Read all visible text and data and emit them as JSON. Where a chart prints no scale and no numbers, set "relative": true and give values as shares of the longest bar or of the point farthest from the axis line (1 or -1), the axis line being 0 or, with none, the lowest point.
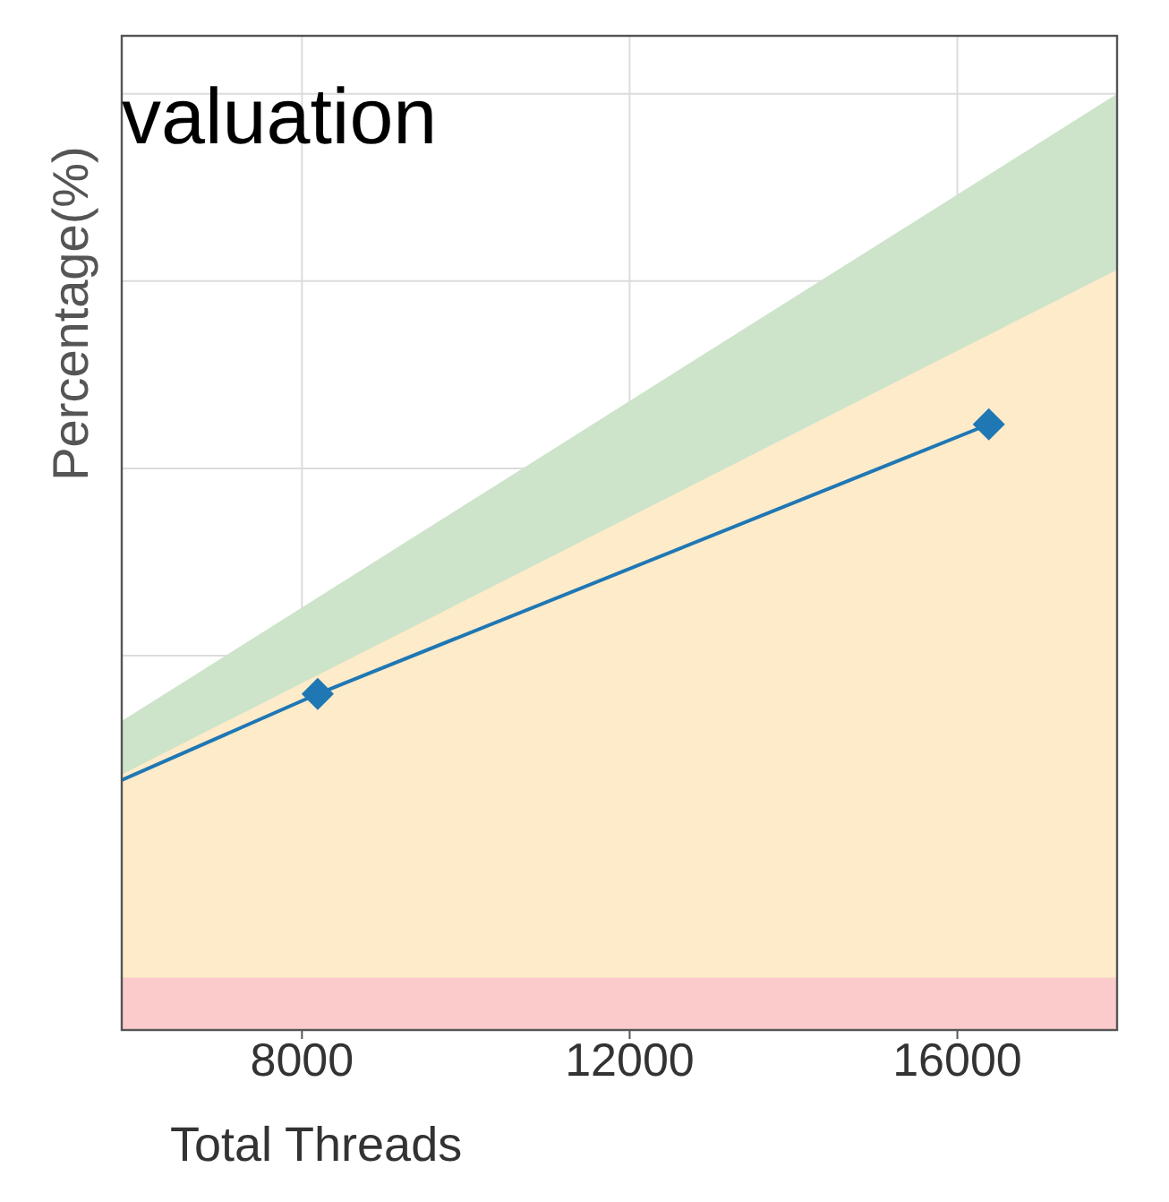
{
  "chart_data": {
    "type": "line",
    "title": "valuation",
    "xlabel": "Total Threads",
    "ylabel": "Percentage(%)",
    "relative": true,
    "xlim": [
      5800,
      17950
    ],
    "xticks": [
      8000,
      12000,
      16000
    ],
    "grid": true,
    "series": [
      {
        "type": "area",
        "color": "#cde4ca",
        "x": [
          5800,
          17950
        ],
        "values": [
          0.33,
          1.0
        ]
      },
      {
        "type": "area",
        "color": "#fdebca",
        "x": [
          5800,
          17950
        ],
        "values": [
          0.273,
          0.812
        ]
      },
      {
        "type": "area",
        "color": "#fbcaca",
        "x": [
          5800,
          17950
        ],
        "values": [
          0.056,
          0.056
        ]
      },
      {
        "color": "#1f77b4",
        "marker": "diamond",
        "x": [
          5800,
          8192,
          16384
        ],
        "values": [
          0.267,
          0.359,
          0.647
        ]
      }
    ]
  }
}
